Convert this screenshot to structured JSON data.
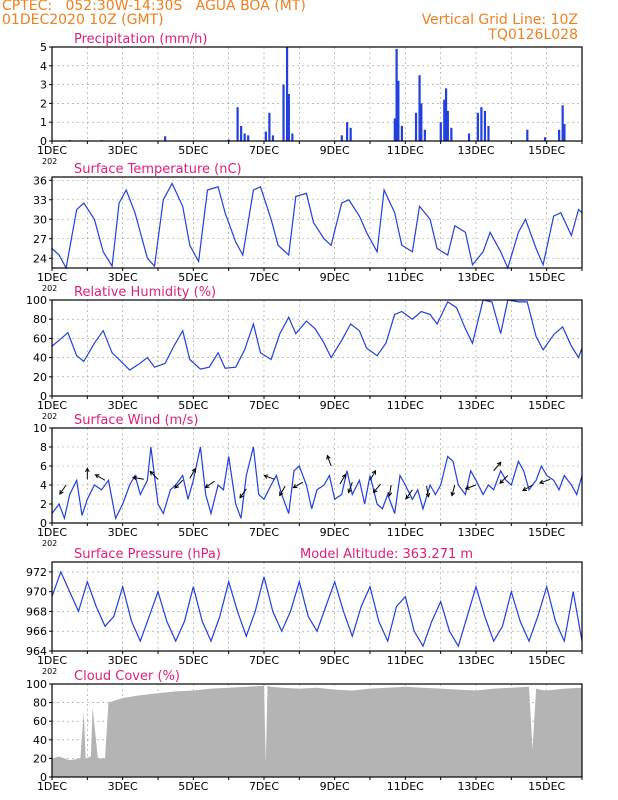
{
  "header": {
    "line1": "CPTEC:   052:30W-14:30S   AGUA BOA (MT)",
    "line2": "01DEC2020 10Z (GMT)",
    "grid_note": "Vertical Grid Line: 10Z",
    "code": "TQ0126L028"
  },
  "colors": {
    "accent": "#f08020",
    "title": "#e0207a",
    "series": "#2040e0",
    "cloud": "#b4b4b4",
    "arrow": "#000000"
  },
  "x_axis": {
    "tick_labels": [
      "1DEC",
      "3DEC",
      "5DEC",
      "7DEC",
      "9DEC",
      "11DEC",
      "13DEC",
      "15DEC"
    ],
    "tick_days": [
      0,
      2,
      4,
      6,
      8,
      10,
      12,
      14
    ],
    "day_range": [
      0,
      15
    ],
    "year_stub": "202"
  },
  "chart_data": [
    {
      "type": "bar",
      "title": "Precipitation (mm/h)",
      "ylim": [
        0,
        5
      ],
      "yticks": [
        0,
        1,
        2,
        3,
        4,
        5
      ],
      "points": [
        [
          0.5,
          0.05
        ],
        [
          1.4,
          0.05
        ],
        [
          3.2,
          0.25
        ],
        [
          5.0,
          0.08
        ],
        [
          5.25,
          1.8
        ],
        [
          5.35,
          0.8
        ],
        [
          5.45,
          0.4
        ],
        [
          5.55,
          0.3
        ],
        [
          6.05,
          0.5
        ],
        [
          6.15,
          1.5
        ],
        [
          6.25,
          0.3
        ],
        [
          6.55,
          3.0
        ],
        [
          6.65,
          5.0
        ],
        [
          6.7,
          2.5
        ],
        [
          6.8,
          0.4
        ],
        [
          8.2,
          0.3
        ],
        [
          8.35,
          1.0
        ],
        [
          8.45,
          0.7
        ],
        [
          9.7,
          1.2
        ],
        [
          9.75,
          4.9
        ],
        [
          9.8,
          3.2
        ],
        [
          9.9,
          0.8
        ],
        [
          10.3,
          1.5
        ],
        [
          10.4,
          3.5
        ],
        [
          10.45,
          2.0
        ],
        [
          10.55,
          0.6
        ],
        [
          11.0,
          1.0
        ],
        [
          11.1,
          2.2
        ],
        [
          11.15,
          2.8
        ],
        [
          11.2,
          1.6
        ],
        [
          11.3,
          0.7
        ],
        [
          11.8,
          0.4
        ],
        [
          12.05,
          1.5
        ],
        [
          12.15,
          1.8
        ],
        [
          12.25,
          1.6
        ],
        [
          12.35,
          0.8
        ],
        [
          13.45,
          0.6
        ],
        [
          13.95,
          0.2
        ],
        [
          14.35,
          0.6
        ],
        [
          14.45,
          1.9
        ],
        [
          14.5,
          0.9
        ]
      ]
    },
    {
      "type": "line",
      "title": "Surface Temperature (nC)",
      "ylim": [
        22.5,
        36.5
      ],
      "yticks": [
        24,
        27,
        30,
        33,
        36
      ],
      "x": [
        0,
        0.2,
        0.4,
        0.7,
        0.9,
        1.2,
        1.45,
        1.7,
        1.9,
        2.1,
        2.35,
        2.7,
        2.9,
        3.15,
        3.4,
        3.7,
        3.9,
        4.15,
        4.4,
        4.7,
        4.9,
        5.2,
        5.4,
        5.7,
        5.9,
        6.2,
        6.4,
        6.7,
        6.9,
        7.2,
        7.4,
        7.7,
        7.9,
        8.2,
        8.4,
        8.7,
        8.9,
        9.2,
        9.4,
        9.7,
        9.9,
        10.2,
        10.4,
        10.7,
        10.9,
        11.2,
        11.4,
        11.7,
        11.9,
        12.2,
        12.4,
        12.7,
        12.9,
        13.2,
        13.4,
        13.7,
        13.9,
        14.2,
        14.4,
        14.7,
        14.9,
        15.0
      ],
      "y": [
        25.5,
        24.5,
        22.5,
        31.5,
        32.5,
        30.0,
        25.0,
        22.8,
        32.5,
        34.5,
        31.0,
        24.0,
        22.8,
        33.0,
        35.5,
        32.0,
        26.0,
        23.5,
        34.5,
        35.0,
        31.0,
        26.5,
        24.5,
        34.5,
        35.0,
        30.0,
        26.0,
        24.5,
        33.5,
        34.0,
        29.5,
        27.0,
        26.0,
        32.5,
        33.0,
        30.5,
        28.0,
        25.0,
        34.5,
        31.0,
        26.0,
        25.0,
        32.0,
        30.0,
        25.5,
        24.5,
        29.0,
        28.0,
        23.0,
        25.0,
        28.0,
        25.0,
        22.5,
        28.0,
        30.0,
        25.5,
        23.0,
        30.5,
        31.0,
        27.5,
        31.5,
        31.0
      ]
    },
    {
      "type": "line",
      "title": "Relative Humidity (%)",
      "ylim": [
        0,
        100
      ],
      "yticks": [
        0,
        20,
        40,
        60,
        80,
        100
      ],
      "x": [
        0,
        0.2,
        0.45,
        0.7,
        0.9,
        1.2,
        1.45,
        1.7,
        1.9,
        2.2,
        2.45,
        2.7,
        2.9,
        3.2,
        3.45,
        3.7,
        3.9,
        4.2,
        4.45,
        4.7,
        4.9,
        5.2,
        5.45,
        5.7,
        5.9,
        6.2,
        6.45,
        6.7,
        6.9,
        7.2,
        7.45,
        7.7,
        7.9,
        8.2,
        8.45,
        8.7,
        8.9,
        9.2,
        9.45,
        9.7,
        9.9,
        10.2,
        10.45,
        10.7,
        10.9,
        11.2,
        11.45,
        11.7,
        11.9,
        12.2,
        12.45,
        12.7,
        12.9,
        13.2,
        13.45,
        13.7,
        13.9,
        14.2,
        14.45,
        14.7,
        14.9,
        15.0
      ],
      "y": [
        52,
        58,
        66,
        42,
        36,
        55,
        68,
        45,
        38,
        27,
        33,
        40,
        30,
        34,
        52,
        68,
        38,
        28,
        30,
        45,
        29,
        30,
        48,
        75,
        45,
        38,
        65,
        82,
        65,
        78,
        70,
        55,
        40,
        58,
        75,
        68,
        50,
        42,
        55,
        85,
        88,
        80,
        88,
        85,
        75,
        98,
        92,
        70,
        55,
        100,
        98,
        65,
        100,
        98,
        98,
        62,
        48,
        64,
        72,
        52,
        40,
        50
      ]
    },
    {
      "type": "line",
      "title": "Surface Wind (m/s)",
      "ylim": [
        0,
        10
      ],
      "yticks": [
        0,
        2,
        4,
        6,
        8,
        10
      ],
      "x": [
        0,
        0.2,
        0.35,
        0.5,
        0.7,
        0.85,
        1.0,
        1.2,
        1.4,
        1.6,
        1.8,
        2.0,
        2.2,
        2.35,
        2.5,
        2.7,
        2.8,
        3.0,
        3.15,
        3.35,
        3.5,
        3.7,
        3.85,
        4.0,
        4.2,
        4.35,
        4.5,
        4.7,
        4.85,
        5.0,
        5.2,
        5.35,
        5.5,
        5.7,
        5.85,
        6.0,
        6.2,
        6.35,
        6.5,
        6.7,
        6.85,
        7.0,
        7.2,
        7.35,
        7.5,
        7.7,
        7.85,
        8.0,
        8.2,
        8.35,
        8.5,
        8.7,
        8.85,
        9.0,
        9.2,
        9.35,
        9.5,
        9.7,
        9.85,
        10.0,
        10.2,
        10.35,
        10.5,
        10.7,
        10.85,
        11.0,
        11.2,
        11.35,
        11.5,
        11.7,
        11.85,
        12.0,
        12.2,
        12.35,
        12.5,
        12.7,
        12.85,
        13.0,
        13.2,
        13.35,
        13.5,
        13.7,
        13.85,
        14.0,
        14.2,
        14.35,
        14.5,
        14.7,
        14.85,
        15.0
      ],
      "y": [
        1.0,
        2.0,
        0.5,
        3.0,
        4.5,
        0.8,
        2.5,
        4.0,
        3.5,
        4.5,
        0.5,
        2.0,
        4.0,
        5.0,
        3.0,
        4.5,
        8.0,
        2.0,
        1.0,
        3.5,
        4.0,
        5.0,
        2.5,
        4.5,
        8.0,
        3.0,
        1.0,
        4.0,
        3.5,
        7.0,
        2.0,
        0.5,
        5.0,
        8.0,
        3.0,
        2.5,
        4.0,
        5.0,
        3.0,
        1.0,
        5.5,
        6.0,
        4.0,
        1.5,
        3.5,
        4.0,
        5.0,
        2.5,
        3.0,
        5.5,
        3.0,
        4.5,
        2.0,
        5.0,
        2.0,
        1.5,
        3.0,
        1.0,
        5.0,
        4.0,
        2.5,
        3.5,
        1.5,
        4.0,
        3.0,
        4.0,
        7.0,
        6.5,
        4.0,
        3.0,
        5.5,
        4.5,
        3.0,
        4.0,
        3.5,
        5.5,
        4.5,
        4.0,
        6.5,
        5.5,
        3.5,
        4.5,
        6.0,
        5.0,
        4.5,
        3.5,
        5.0,
        4.0,
        3.0,
        5.0
      ],
      "arrows": [
        [
          0.4,
          4.0,
          215
        ],
        [
          1.0,
          4.6,
          0
        ],
        [
          1.5,
          4.5,
          300
        ],
        [
          2.6,
          4.6,
          280
        ],
        [
          3.0,
          4.6,
          315
        ],
        [
          3.7,
          4.5,
          225
        ],
        [
          3.9,
          4.7,
          30
        ],
        [
          4.6,
          4.4,
          235
        ],
        [
          5.5,
          3.6,
          215
        ],
        [
          6.3,
          4.6,
          290
        ],
        [
          6.6,
          3.9,
          210
        ],
        [
          7.1,
          4.3,
          240
        ],
        [
          7.9,
          6.0,
          340
        ],
        [
          8.15,
          4.1,
          30
        ],
        [
          8.5,
          4.3,
          200
        ],
        [
          9.0,
          4.5,
          30
        ],
        [
          9.3,
          4.1,
          220
        ],
        [
          9.6,
          4.0,
          190
        ],
        [
          10.2,
          3.5,
          215
        ],
        [
          10.6,
          3.9,
          170
        ],
        [
          11.4,
          4.0,
          195
        ],
        [
          12.0,
          4.0,
          250
        ],
        [
          12.5,
          5.5,
          40
        ],
        [
          12.9,
          5.0,
          225
        ],
        [
          13.6,
          4.0,
          240
        ],
        [
          14.1,
          4.6,
          250
        ]
      ]
    },
    {
      "type": "line",
      "title": "Surface Pressure (hPa)",
      "annotation": "Model Altitude: 363.271 m",
      "ylim": [
        964,
        973
      ],
      "yticks": [
        964,
        966,
        968,
        970,
        972
      ],
      "x": [
        0,
        0.25,
        0.5,
        0.75,
        1.0,
        1.25,
        1.5,
        1.75,
        2.0,
        2.25,
        2.5,
        2.75,
        3.0,
        3.25,
        3.5,
        3.75,
        4.0,
        4.25,
        4.5,
        4.75,
        5.0,
        5.25,
        5.5,
        5.75,
        6.0,
        6.25,
        6.5,
        6.75,
        7.0,
        7.25,
        7.5,
        7.75,
        8.0,
        8.25,
        8.5,
        8.75,
        9.0,
        9.25,
        9.5,
        9.75,
        10.0,
        10.25,
        10.5,
        10.75,
        11.0,
        11.25,
        11.5,
        11.75,
        12.0,
        12.25,
        12.5,
        12.75,
        13.0,
        13.25,
        13.5,
        13.75,
        14.0,
        14.25,
        14.5,
        14.75,
        15.0
      ],
      "y": [
        969.5,
        972.0,
        970.0,
        968.0,
        971.0,
        968.5,
        966.5,
        967.5,
        970.5,
        967.0,
        965.0,
        967.5,
        970.0,
        967.0,
        965.0,
        967.0,
        970.5,
        967.0,
        965.0,
        967.5,
        971.0,
        968.0,
        965.5,
        968.0,
        971.5,
        968.0,
        966.0,
        968.0,
        971.0,
        967.5,
        966.0,
        968.5,
        971.0,
        968.0,
        965.5,
        968.5,
        970.5,
        967.0,
        965.0,
        968.5,
        969.5,
        966.0,
        964.5,
        967.0,
        969.0,
        966.0,
        964.5,
        967.5,
        970.5,
        967.5,
        965.0,
        966.5,
        970.0,
        967.0,
        965.0,
        967.5,
        970.5,
        967.0,
        965.0,
        970.0,
        965.0
      ]
    },
    {
      "type": "area",
      "title": "Cloud Cover (%)",
      "ylim": [
        0,
        100
      ],
      "yticks": [
        0,
        20,
        40,
        60,
        80,
        100
      ],
      "x": [
        0,
        0.2,
        0.5,
        0.8,
        0.9,
        0.95,
        1.1,
        1.15,
        1.3,
        1.5,
        1.6,
        2.0,
        2.5,
        3.0,
        3.5,
        4.0,
        4.5,
        5.0,
        5.5,
        6.0,
        6.05,
        6.1,
        6.2,
        6.5,
        7.0,
        7.5,
        8.0,
        8.5,
        9.0,
        9.5,
        10.0,
        10.5,
        11.0,
        11.5,
        12.0,
        12.5,
        13.0,
        13.5,
        13.6,
        13.7,
        13.8,
        14.0,
        14.5,
        15.0
      ],
      "y": [
        20,
        22,
        18,
        20,
        70,
        20,
        22,
        75,
        20,
        20,
        80,
        85,
        88,
        90,
        92,
        93,
        95,
        96,
        97,
        98,
        15,
        98,
        97,
        96,
        95,
        96,
        94,
        93,
        95,
        96,
        97,
        96,
        95,
        94,
        93,
        95,
        96,
        97,
        30,
        95,
        94,
        93,
        95,
        96
      ]
    }
  ]
}
